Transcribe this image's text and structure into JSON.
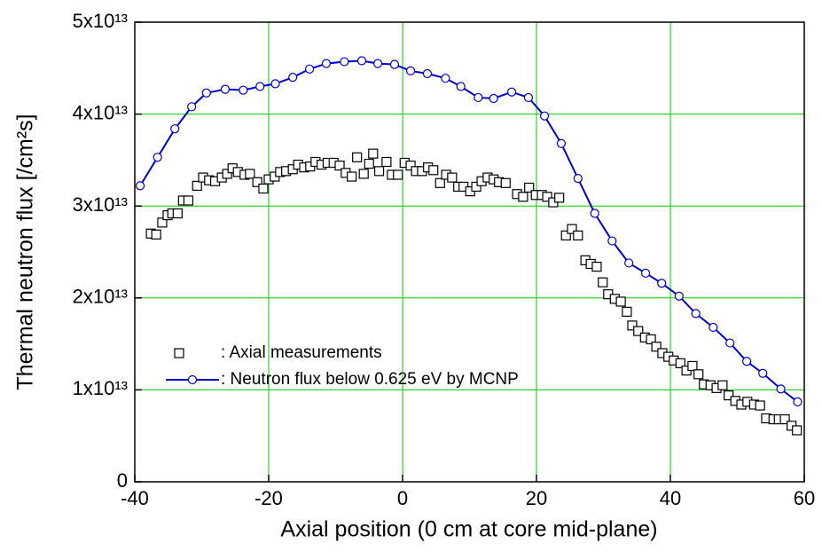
{
  "chart_data": {
    "type": "scatter",
    "x_label": "Axial position (0 cm at core mid-plane)",
    "y_label": "Thermal neutron flux [/cm²s]",
    "xlim": [
      -40,
      60
    ],
    "xticks": [
      -40,
      -20,
      0,
      20,
      40,
      60
    ],
    "ylim": [
      0,
      50000000000000.0
    ],
    "yticks": [
      0,
      {
        "value": 10000000000000.0,
        "label": "1x10¹³"
      },
      {
        "value": 20000000000000.0,
        "label": "2x10¹³"
      },
      {
        "value": 30000000000000.0,
        "label": "3x10¹³"
      },
      {
        "value": 40000000000000.0,
        "label": "4x10¹³"
      },
      {
        "value": 50000000000000.0,
        "label": "5x10¹³"
      }
    ],
    "grid": true,
    "grid_color": "#00cc00",
    "legend": "lower left",
    "series": [
      {
        "name": ": Axial measurements",
        "color": "#000000",
        "marker": "square",
        "line": false,
        "x": [
          -37.6,
          -36.8,
          -35.9,
          -35.1,
          -34.4,
          -33.6,
          -32.8,
          -32.0,
          -30.7,
          -29.8,
          -28.9,
          -28.0,
          -27.0,
          -26.2,
          -25.4,
          -24.6,
          -23.6,
          -22.8,
          -21.7,
          -20.8,
          -20.0,
          -19.1,
          -18.3,
          -17.4,
          -16.4,
          -15.6,
          -14.7,
          -13.8,
          -13.0,
          -12.1,
          -11.2,
          -10.3,
          -9.4,
          -8.5,
          -7.6,
          -6.8,
          -5.8,
          -5.0,
          -4.4,
          -3.5,
          -2.4,
          -1.6,
          -0.7,
          0.3,
          1.2,
          2.0,
          2.9,
          3.8,
          4.6,
          5.6,
          6.5,
          7.4,
          8.3,
          9.1,
          10.1,
          11.0,
          11.8,
          12.7,
          13.6,
          14.4,
          15.4,
          17.1,
          18.0,
          18.9,
          19.9,
          20.8,
          21.6,
          22.5,
          23.4,
          24.4,
          25.3,
          26.2,
          27.3,
          28.1,
          29.0,
          29.9,
          30.7,
          31.7,
          32.6,
          33.5,
          34.3,
          35.2,
          36.2,
          37.1,
          37.9,
          38.8,
          39.7,
          40.5,
          41.5,
          42.4,
          43.3,
          44.2,
          45.0,
          46.0,
          46.9,
          47.8,
          48.7,
          49.7,
          50.6,
          51.5,
          52.5,
          53.4,
          54.3,
          55.4,
          56.2,
          57.1,
          58.1,
          58.9
        ],
        "values": [
          27000000000000.0,
          26900000000000.0,
          28200000000000.0,
          29000000000000.0,
          29200000000000.0,
          29200000000000.0,
          30600000000000.0,
          30600000000000.0,
          32200000000000.0,
          33100000000000.0,
          32800000000000.0,
          32700000000000.0,
          33100000000000.0,
          33500000000000.0,
          34100000000000.0,
          33700000000000.0,
          33400000000000.0,
          33500000000000.0,
          32600000000000.0,
          31900000000000.0,
          32900000000000.0,
          33200000000000.0,
          33700000000000.0,
          33800000000000.0,
          34000000000000.0,
          34500000000000.0,
          34200000000000.0,
          34300000000000.0,
          34800000000000.0,
          34500000000000.0,
          34700000000000.0,
          34700000000000.0,
          34400000000000.0,
          33600000000000.0,
          33200000000000.0,
          35300000000000.0,
          33500000000000.0,
          34600000000000.0,
          35700000000000.0,
          33800000000000.0,
          34800000000000.0,
          33400000000000.0,
          33400000000000.0,
          34700000000000.0,
          34400000000000.0,
          33800000000000.0,
          33800000000000.0,
          34200000000000.0,
          33900000000000.0,
          32500000000000.0,
          33400000000000.0,
          33100000000000.0,
          32100000000000.0,
          32100000000000.0,
          31600000000000.0,
          32100000000000.0,
          32700000000000.0,
          33100000000000.0,
          32900000000000.0,
          32600000000000.0,
          32500000000000.0,
          31300000000000.0,
          31000000000000.0,
          32000000000000.0,
          31200000000000.0,
          31200000000000.0,
          31000000000000.0,
          30400000000000.0,
          30900000000000.0,
          26800000000000.0,
          27500000000000.0,
          26800000000000.0,
          24100000000000.0,
          23700000000000.0,
          23400000000000.0,
          21700000000000.0,
          20400000000000.0,
          19900000000000.0,
          19600000000000.0,
          18500000000000.0,
          17000000000000.0,
          16400000000000.0,
          15700000000000.0,
          15500000000000.0,
          14700000000000.0,
          14000000000000.0,
          13600000000000.0,
          13200000000000.0,
          12900000000000.0,
          12100000000000.0,
          12600000000000.0,
          11700000000000.0,
          10600000000000.0,
          10500000000000.0,
          10200000000000.0,
          10500000000000.0,
          9400000000000.0,
          8800000000000.0,
          8400000000000.0,
          8700000000000.0,
          8400000000000.0,
          8300000000000.0,
          6900000000000.0,
          6800000000000.0,
          6800000000000.0,
          6800000000000.0,
          6100000000000.0,
          5600000000000.0
        ]
      },
      {
        "name": ": Neutron flux below 0.625 eV by MCNP",
        "color": "#0000cc",
        "marker": "circle",
        "line": true,
        "x": [
          -39.2,
          -36.6,
          -34.0,
          -31.5,
          -29.3,
          -26.5,
          -23.8,
          -21.3,
          -19.0,
          -16.4,
          -13.9,
          -11.4,
          -8.7,
          -6.1,
          -3.7,
          -1.2,
          1.2,
          3.7,
          6.4,
          8.7,
          11.3,
          13.6,
          16.3,
          18.8,
          21.2,
          23.7,
          26.2,
          28.7,
          31.3,
          33.8,
          36.3,
          38.7,
          41.3,
          43.8,
          46.4,
          48.9,
          51.4,
          53.8,
          56.5,
          59.0
        ],
        "values": [
          32200000000000.0,
          35300000000000.0,
          38400000000000.0,
          40800000000000.0,
          42300000000000.0,
          42700000000000.0,
          42600000000000.0,
          43000000000000.0,
          43300000000000.0,
          44000000000000.0,
          44900000000000.0,
          45500000000000.0,
          45700000000000.0,
          45800000000000.0,
          45500000000000.0,
          45400000000000.0,
          44700000000000.0,
          44400000000000.0,
          43900000000000.0,
          43000000000000.0,
          41800000000000.0,
          41700000000000.0,
          42400000000000.0,
          41800000000000.0,
          39800000000000.0,
          36800000000000.0,
          33000000000000.0,
          29200000000000.0,
          26200000000000.0,
          23800000000000.0,
          22700000000000.0,
          21600000000000.0,
          20200000000000.0,
          18300000000000.0,
          16800000000000.0,
          15100000000000.0,
          13100000000000.0,
          11800000000000.0,
          10100000000000.0,
          8700000000000.0
        ]
      }
    ]
  }
}
